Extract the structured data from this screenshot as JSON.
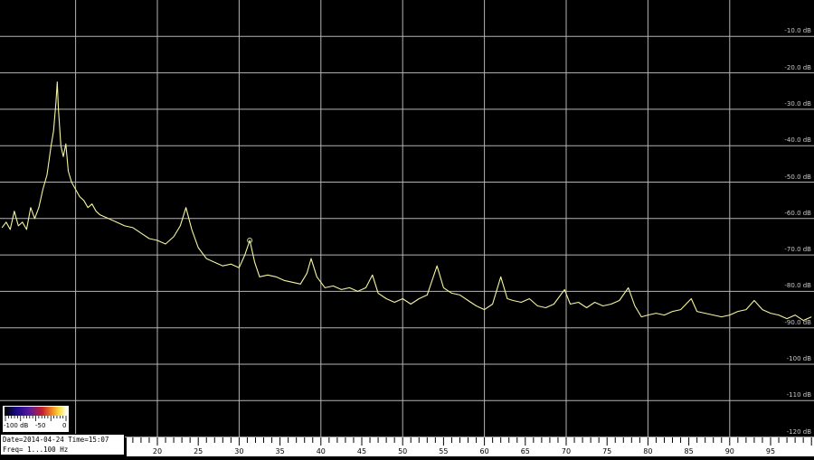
{
  "chart_data": {
    "type": "line",
    "title": "",
    "xlabel": "",
    "ylabel": "",
    "xlim": [
      1,
      100
    ],
    "ylim": [
      -120,
      0
    ],
    "grid": true,
    "x_tick_labels": [
      "20",
      "25",
      "30",
      "35",
      "40",
      "45",
      "50",
      "55",
      "60",
      "65",
      "70",
      "75",
      "80",
      "85",
      "90",
      "95"
    ],
    "y_tick_labels": [
      "-10.0 dB",
      "-20.0 dB",
      "-30.0 dB",
      "-40.0 dB",
      "-50.0 dB",
      "-60.0 dB",
      "-70.0 dB",
      "-80.0 dB",
      "-90.0 dB",
      "-100 dB",
      "-110 dB",
      "-120 dB"
    ],
    "line_color": "#f4f4a0",
    "grid_color": "#b4b4b4",
    "marker": {
      "x": 31.3,
      "y": -66,
      "shape": "circle",
      "color": "#c8e0a0"
    },
    "series": [
      {
        "points": [
          [
            1,
            -62.5
          ],
          [
            1.5,
            -61
          ],
          [
            2,
            -63
          ],
          [
            2.5,
            -58
          ],
          [
            3,
            -62
          ],
          [
            3.5,
            -61
          ],
          [
            4,
            -63
          ],
          [
            4.5,
            -57
          ],
          [
            5,
            -60
          ],
          [
            5.5,
            -57
          ],
          [
            6,
            -52
          ],
          [
            6.5,
            -48
          ],
          [
            7,
            -40
          ],
          [
            7.3,
            -36
          ],
          [
            7.6,
            -28
          ],
          [
            7.75,
            -22.5
          ],
          [
            7.9,
            -30
          ],
          [
            8.2,
            -40
          ],
          [
            8.5,
            -43
          ],
          [
            8.8,
            -39.5
          ],
          [
            9.1,
            -47
          ],
          [
            9.5,
            -50
          ],
          [
            10,
            -52
          ],
          [
            10.5,
            -54
          ],
          [
            11,
            -55
          ],
          [
            11.5,
            -57
          ],
          [
            12,
            -56
          ],
          [
            12.5,
            -58
          ],
          [
            13,
            -59
          ],
          [
            14,
            -60
          ],
          [
            15,
            -61
          ],
          [
            16,
            -62
          ],
          [
            17,
            -62.5
          ],
          [
            18,
            -64
          ],
          [
            19,
            -65.5
          ],
          [
            20,
            -66
          ],
          [
            21,
            -67
          ],
          [
            22,
            -65
          ],
          [
            22.8,
            -62
          ],
          [
            23.5,
            -57
          ],
          [
            24.2,
            -63
          ],
          [
            25,
            -68
          ],
          [
            26,
            -71
          ],
          [
            27,
            -72
          ],
          [
            28,
            -73
          ],
          [
            29,
            -72.5
          ],
          [
            30,
            -73.5
          ],
          [
            30.7,
            -70
          ],
          [
            31.3,
            -66
          ],
          [
            31.9,
            -72
          ],
          [
            32.5,
            -76
          ],
          [
            33.5,
            -75.5
          ],
          [
            34.5,
            -76
          ],
          [
            35.5,
            -77
          ],
          [
            36.5,
            -77.5
          ],
          [
            37.5,
            -78
          ],
          [
            38.3,
            -75
          ],
          [
            38.8,
            -71
          ],
          [
            39.5,
            -76
          ],
          [
            40.5,
            -79
          ],
          [
            41.5,
            -78.5
          ],
          [
            42.5,
            -79.5
          ],
          [
            43.5,
            -79
          ],
          [
            44.5,
            -80
          ],
          [
            45.5,
            -79
          ],
          [
            46.3,
            -75.5
          ],
          [
            47,
            -80.5
          ],
          [
            48,
            -82
          ],
          [
            49,
            -83
          ],
          [
            50,
            -82
          ],
          [
            51,
            -83.5
          ],
          [
            52,
            -82
          ],
          [
            53,
            -81
          ],
          [
            54.2,
            -73
          ],
          [
            55,
            -79
          ],
          [
            56,
            -80.5
          ],
          [
            57,
            -81
          ],
          [
            58,
            -82.5
          ],
          [
            59,
            -84
          ],
          [
            60,
            -85
          ],
          [
            61,
            -83.5
          ],
          [
            62,
            -76
          ],
          [
            62.8,
            -82
          ],
          [
            63.5,
            -82.5
          ],
          [
            64.5,
            -83
          ],
          [
            65.5,
            -82
          ],
          [
            66.5,
            -84
          ],
          [
            67.5,
            -84.5
          ],
          [
            68.5,
            -83.5
          ],
          [
            69.8,
            -79.5
          ],
          [
            70.5,
            -83.5
          ],
          [
            71.5,
            -83
          ],
          [
            72.5,
            -84.5
          ],
          [
            73.5,
            -83
          ],
          [
            74.5,
            -84
          ],
          [
            75.5,
            -83.5
          ],
          [
            76.5,
            -82.5
          ],
          [
            77.6,
            -79
          ],
          [
            78.4,
            -84
          ],
          [
            79.2,
            -87
          ],
          [
            80,
            -86.5
          ],
          [
            81,
            -86
          ],
          [
            82,
            -86.5
          ],
          [
            83,
            -85.5
          ],
          [
            84,
            -85
          ],
          [
            85.3,
            -82
          ],
          [
            86,
            -85.5
          ],
          [
            87,
            -86
          ],
          [
            88,
            -86.5
          ],
          [
            89,
            -87
          ],
          [
            90,
            -86.5
          ],
          [
            91,
            -85.5
          ],
          [
            92,
            -85
          ],
          [
            93,
            -82.5
          ],
          [
            94,
            -85
          ],
          [
            95,
            -86
          ],
          [
            96,
            -86.5
          ],
          [
            97,
            -87.5
          ],
          [
            98,
            -86.5
          ],
          [
            99,
            -88
          ],
          [
            100,
            -87
          ]
        ]
      }
    ]
  },
  "colorbar": {
    "labels": [
      "-100 dB",
      "-50",
      "0"
    ]
  },
  "info": {
    "date_line": "Date=2014-04-24 Time=15:07",
    "freq_line": "Freq= 1...100 Hz"
  }
}
